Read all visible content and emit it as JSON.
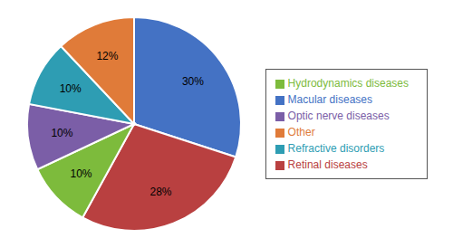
{
  "chart_data": {
    "type": "pie",
    "categories": [
      "Macular diseases",
      "Retinal diseases",
      "Hydrodynamics diseases",
      "Optic nerve diseases",
      "Refractive disorders",
      "Other"
    ],
    "values": [
      30,
      28,
      10,
      10,
      10,
      12
    ],
    "value_labels": [
      "30%",
      "28%",
      "10%",
      "10%",
      "10%",
      "12%"
    ],
    "colors": [
      "#4472C4",
      "#B94040",
      "#7DBB3C",
      "#7B5EA7",
      "#2E9DB3",
      "#E07B39"
    ],
    "data_labels": true,
    "legend": "right"
  }
}
